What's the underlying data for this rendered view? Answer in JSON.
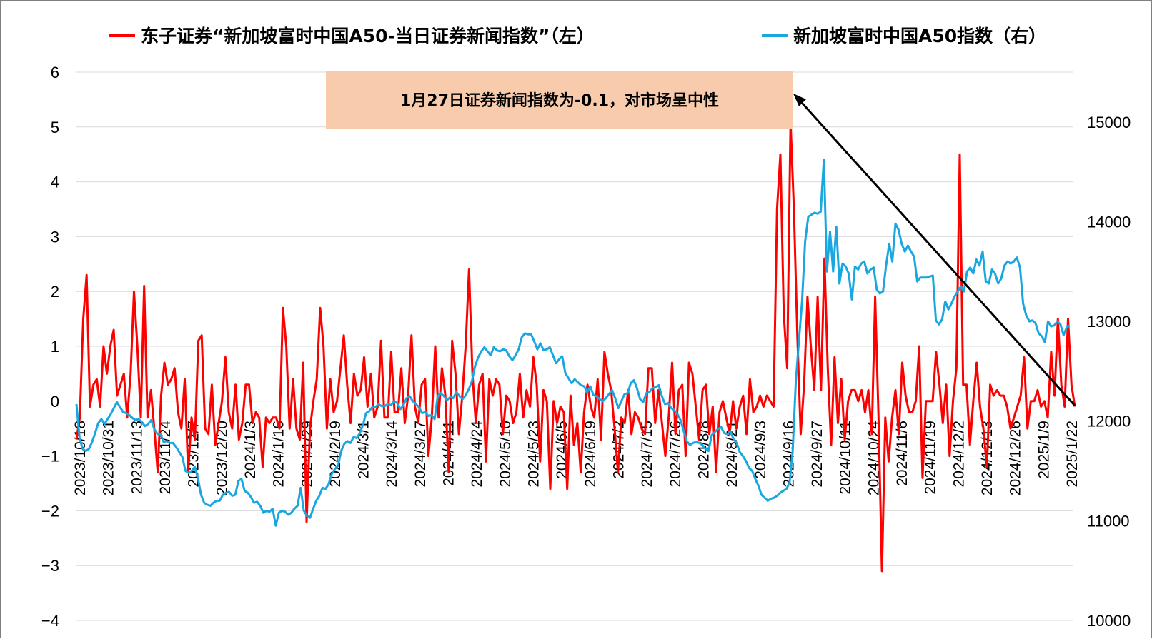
{
  "chart_data": {
    "type": "line",
    "legend": [
      {
        "name": "东子证券“新加坡富时中国A50-当日证券新闻指数”（左）",
        "color": "#ff0000",
        "axis": "left"
      },
      {
        "name": "新加坡富时中国A50指数（右）",
        "color": "#1aa7e0",
        "axis": "right"
      }
    ],
    "left_axis": {
      "min": -4,
      "max": 6,
      "ticks": [
        "6",
        "5",
        "4",
        "3",
        "2",
        "1",
        "0",
        "−1",
        "−2",
        "−3",
        "−4"
      ]
    },
    "right_axis": {
      "min": 10000,
      "max": 15500,
      "ticks": [
        "15000",
        "14000",
        "13000",
        "12000",
        "11000",
        "10000"
      ]
    },
    "x_labels": [
      "2023/10/18",
      "2023/10/31",
      "2023/11/13",
      "2023/11/24",
      "2023/12/7",
      "2023/12/20",
      "2024/1/3",
      "2024/1/16",
      "2024/1/29",
      "2024/2/19",
      "2024/3/1",
      "2024/3/14",
      "2024/3/27",
      "2024/4/11",
      "2024/4/24",
      "2024/5/10",
      "2024/5/23",
      "2024/6/5",
      "2024/6/19",
      "2024/7/2",
      "2024/7/15",
      "2024/7/26",
      "2024/8/8",
      "2024/8/21",
      "2024/9/3",
      "2024/9/16",
      "2024/9/27",
      "2024/10/11",
      "2024/10/24",
      "2024/11/6",
      "2024/11/19",
      "2024/12/2",
      "2024/12/13",
      "2024/12/26",
      "2025/1/9",
      "2025/1/22"
    ],
    "annotation": {
      "text": "1月27日证券新闻指数为-0.1，对市场呈中性"
    },
    "series": [
      {
        "name": "东子证券“新加坡富时中国A50-当日证券新闻指数”（左）",
        "axis": "left",
        "values": [
          -0.7,
          -0.3,
          1.5,
          2.3,
          -0.1,
          0.3,
          0.4,
          -0.1,
          1.0,
          0.5,
          1.0,
          1.3,
          0.1,
          0.3,
          0.5,
          -0.3,
          0.5,
          2.0,
          1.0,
          -0.3,
          2.1,
          -0.3,
          0.2,
          -0.5,
          -1.3,
          0.1,
          0.7,
          0.3,
          0.4,
          0.6,
          -0.2,
          -0.5,
          0.4,
          -1.3,
          -0.3,
          -0.7,
          1.1,
          1.2,
          -0.5,
          -0.6,
          0.3,
          -0.8,
          -0.4,
          0.0,
          0.8,
          -0.2,
          -0.5,
          0.3,
          -0.7,
          -0.4,
          0.3,
          0.3,
          -0.4,
          -0.2,
          -0.3,
          -1.2,
          -0.3,
          -0.4,
          -0.3,
          -0.3,
          -0.5,
          1.7,
          1.0,
          -0.5,
          0.4,
          -0.5,
          -0.7,
          0.7,
          -2.2,
          -0.5,
          0.0,
          0.4,
          1.7,
          1.0,
          -0.5,
          0.4,
          -0.2,
          0.0,
          0.6,
          1.2,
          0.3,
          -0.4,
          0.5,
          0.1,
          0.2,
          0.8,
          -0.1,
          0.5,
          -0.3,
          -0.1,
          1.1,
          -0.3,
          -0.3,
          0.9,
          -0.2,
          -0.2,
          0.6,
          -0.4,
          0.1,
          1.2,
          -0.1,
          -0.4,
          0.3,
          0.4,
          -1.0,
          -0.3,
          1.0,
          -0.3,
          0.6,
          0.1,
          -1.3,
          1.1,
          0.5,
          -0.6,
          0.1,
          1.0,
          2.4,
          0.5,
          -0.4,
          0.3,
          0.5,
          -1.1,
          0.4,
          0.1,
          0.4,
          0.3,
          -0.6,
          0.1,
          0.0,
          -0.4,
          -0.2,
          0.5,
          -0.3,
          0.2,
          -0.1,
          0.8,
          0.3,
          -1.1,
          0.2,
          0.0,
          -1.6,
          0.0,
          -0.4,
          -0.1,
          -0.2,
          -1.6,
          0.1,
          -0.8,
          -0.4,
          -1.3,
          -0.2,
          0.3,
          -0.1,
          -0.3,
          0.4,
          -0.7,
          0.9,
          0.5,
          0.2,
          -0.5,
          -1.3,
          -0.3,
          -0.4,
          0.2,
          -0.6,
          -0.2,
          -0.3,
          -0.5,
          -0.6,
          0.6,
          0.6,
          -0.4,
          0.2,
          -0.4,
          -1.0,
          -0.3,
          0.7,
          -0.6,
          0.2,
          0.3,
          -1.0,
          0.7,
          0.5,
          -0.1,
          -0.7,
          0.2,
          0.3,
          -0.6,
          -0.1,
          -1.3,
          -0.2,
          0.0,
          -0.3,
          -0.6,
          0.0,
          -0.5,
          -0.1,
          0.1,
          -0.6,
          0.4,
          -0.2,
          -0.1,
          0.1,
          -0.1,
          0.1,
          0.0,
          -0.1,
          3.5,
          4.5,
          1.6,
          0.6,
          5.1,
          3.5,
          1.2,
          -0.6,
          0.3,
          1.9,
          1.0,
          0.2,
          1.9,
          0.2,
          2.6,
          0.6,
          -0.8,
          0.8,
          -0.4,
          0.4,
          -0.7,
          0.0,
          0.2,
          0.2,
          0.0,
          0.2,
          -0.2,
          0.2,
          -0.6,
          1.9,
          -0.3,
          -3.1,
          -0.3,
          -1.1,
          -0.3,
          0.2,
          -0.6,
          0.7,
          0.1,
          -0.2,
          -0.2,
          0.0,
          1.0,
          -1.4,
          0.0,
          0.0,
          0.0,
          0.9,
          0.3,
          -0.4,
          0.3,
          -1.0,
          0.0,
          0.6,
          4.5,
          0.3,
          0.3,
          -0.8,
          0.0,
          0.7,
          -0.1,
          -0.5,
          -1.2,
          0.3,
          0.1,
          0.2,
          0.1,
          0.1,
          -0.1,
          -0.5,
          -0.3,
          -0.1,
          0.1,
          0.8,
          -0.5,
          0.0,
          0.0,
          0.2,
          -0.1,
          0.0,
          -0.3,
          0.9,
          0.1,
          1.5,
          0.3,
          -0.1,
          1.5,
          0.3,
          -0.1
        ]
      },
      {
        "name": "新加坡富时中国A50指数（右）",
        "axis": "right",
        "values": [
          12170,
          11830,
          11720,
          11700,
          11720,
          11790,
          11880,
          11980,
          12020,
          11970,
          12020,
          12070,
          12130,
          12190,
          12140,
          12090,
          12080,
          12060,
          12030,
          12010,
          12020,
          11990,
          11950,
          11970,
          12010,
          11920,
          11870,
          11870,
          11790,
          11800,
          11780,
          11780,
          11740,
          11690,
          11640,
          11500,
          11480,
          11500,
          11540,
          11430,
          11260,
          11180,
          11160,
          11150,
          11180,
          11200,
          11200,
          11260,
          11280,
          11290,
          11250,
          11260,
          11400,
          11420,
          11300,
          11280,
          11240,
          11180,
          11190,
          11150,
          11080,
          11100,
          11090,
          11120,
          10950,
          11080,
          11100,
          11090,
          11060,
          11080,
          11120,
          11150,
          11330,
          11100,
          11050,
          11030,
          11120,
          11200,
          11250,
          11330,
          11320,
          11370,
          11470,
          11520,
          11550,
          11700,
          11770,
          11800,
          11780,
          11840,
          11830,
          11880,
          11960,
          12080,
          12100,
          12140,
          12140,
          12170,
          12150,
          12150,
          12170,
          12160,
          12200,
          12180,
          12120,
          12160,
          12230,
          12250,
          12200,
          12170,
          12140,
          12080,
          12090,
          12050,
          12060,
          12020,
          12250,
          12280,
          12250,
          12210,
          12240,
          12230,
          12290,
          12250,
          12220,
          12260,
          12320,
          12400,
          12550,
          12640,
          12700,
          12740,
          12700,
          12660,
          12740,
          12710,
          12700,
          12720,
          12710,
          12650,
          12610,
          12660,
          12720,
          12840,
          12880,
          12870,
          12870,
          12800,
          12720,
          12780,
          12710,
          12720,
          12740,
          12660,
          12580,
          12620,
          12650,
          12480,
          12430,
          12380,
          12420,
          12390,
          12360,
          12350,
          12290,
          12350,
          12260,
          12250,
          12220,
          12200,
          12230,
          12270,
          12310,
          12230,
          12130,
          12200,
          12270,
          12280,
          12380,
          12410,
          12330,
          12220,
          12190,
          12280,
          12290,
          12330,
          12340,
          12360,
          12250,
          12170,
          12180,
          12130,
          12110,
          12070,
          12010,
          11900,
          11800,
          11760,
          11780,
          11790,
          11780,
          11760,
          11720,
          11700,
          11860,
          11890,
          11920,
          11940,
          11880,
          11870,
          11900,
          11820,
          11780,
          11690,
          11650,
          11600,
          11530,
          11500,
          11420,
          11350,
          11260,
          11230,
          11200,
          11220,
          11230,
          11250,
          11280,
          11300,
          11320,
          11380,
          11700,
          12400,
          12800,
          13200,
          13800,
          14050,
          14070,
          14090,
          14080,
          14100,
          14620,
          13500,
          13900,
          13500,
          13950,
          13380,
          13580,
          13550,
          13480,
          13220,
          13550,
          13520,
          13580,
          13600,
          13480,
          13520,
          13540,
          13320,
          13280,
          13300,
          13560,
          13780,
          13600,
          13980,
          13920,
          13780,
          13700,
          13760,
          13700,
          13650,
          13400,
          13440,
          13440,
          13440,
          13450,
          13460,
          13010,
          12970,
          13020,
          13200,
          13120,
          13180,
          13250,
          13300,
          13350,
          13300,
          13500,
          13540,
          13480,
          13620,
          13560,
          13700,
          13400,
          13380,
          13520,
          13480,
          13380,
          13430,
          13560,
          13600,
          13580,
          13600,
          13640,
          13540,
          13180,
          13060,
          13000,
          13010,
          12980,
          12880,
          12850,
          12790,
          13000,
          12950,
          12960,
          13000,
          12970,
          12860,
          12940,
          12960
        ]
      }
    ]
  }
}
